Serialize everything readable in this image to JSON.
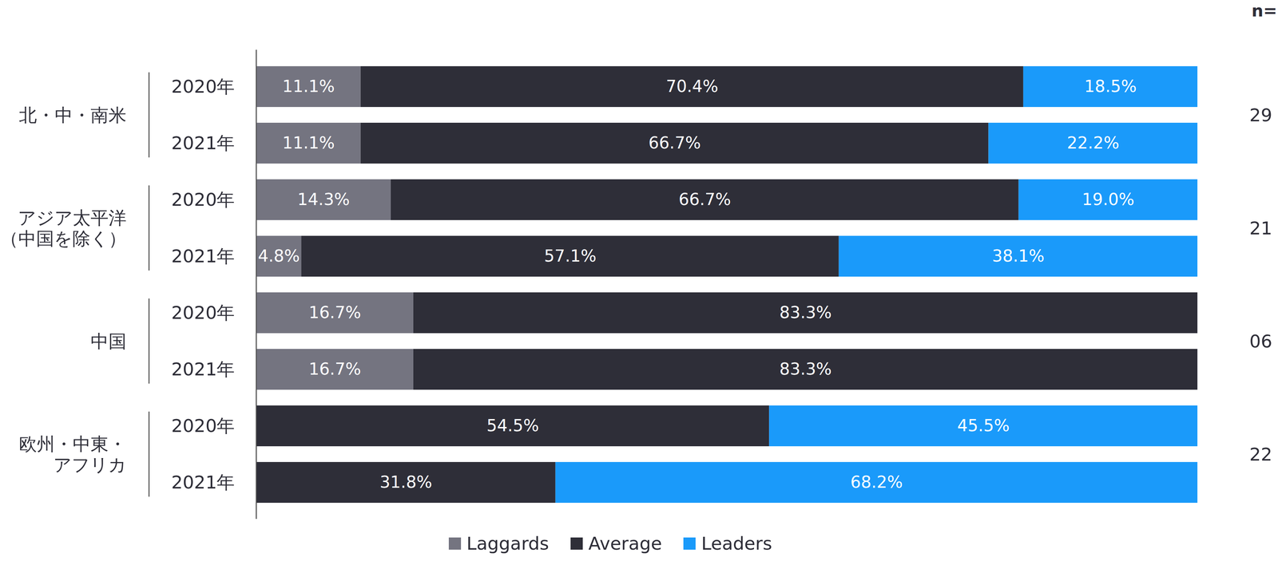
{
  "chart_data": {
    "type": "bar",
    "orientation": "horizontal",
    "stacked": true,
    "data_labels": true,
    "tick_labels": "y",
    "legend": "bottom",
    "categories": [
      "2020年",
      "2021年",
      "2020年",
      "2021年",
      "2020年",
      "2021年",
      "2020年",
      "2021年"
    ],
    "groups": [
      {
        "name": [
          "北・中・南米"
        ],
        "n": 29
      },
      {
        "name": [
          "アジア太平洋",
          "（中国を除く）"
        ],
        "n": 21
      },
      {
        "name": [
          "中国"
        ],
        "n": {
          "value": 6,
          "label": "06"
        }
      },
      {
        "name": [
          "欧州・中東・",
          "アフリカ"
        ],
        "n": 22
      }
    ],
    "n_title": "n=",
    "xlim": [
      0,
      100
    ],
    "xticks": [],
    "series": [
      {
        "name": "Laggards",
        "color": "#747480",
        "values": [
          11.1,
          11.1,
          14.3,
          4.8,
          16.7,
          16.7,
          null,
          null
        ],
        "value_labels": [
          "11.1%",
          "11.1%",
          "14.3%",
          "4.8%",
          "16.7%",
          "16.7%",
          null,
          null
        ]
      },
      {
        "name": "Average",
        "color": "#2e2e38",
        "values": [
          70.4,
          66.7,
          66.7,
          57.1,
          83.3,
          83.3,
          54.5,
          31.8
        ],
        "value_labels": [
          "70.4%",
          "66.7%",
          "66.7%",
          "57.1%",
          "83.3%",
          "83.3%",
          "54.5%",
          "31.8%"
        ]
      },
      {
        "name": "Leaders",
        "color": "#1a9afa",
        "values": [
          18.5,
          22.2,
          19.0,
          38.1,
          null,
          null,
          45.5,
          68.2
        ],
        "value_labels": [
          "18.5%",
          "22.2%",
          "19.0%",
          "38.1%",
          null,
          null,
          "45.5%",
          "68.2%"
        ]
      }
    ]
  }
}
